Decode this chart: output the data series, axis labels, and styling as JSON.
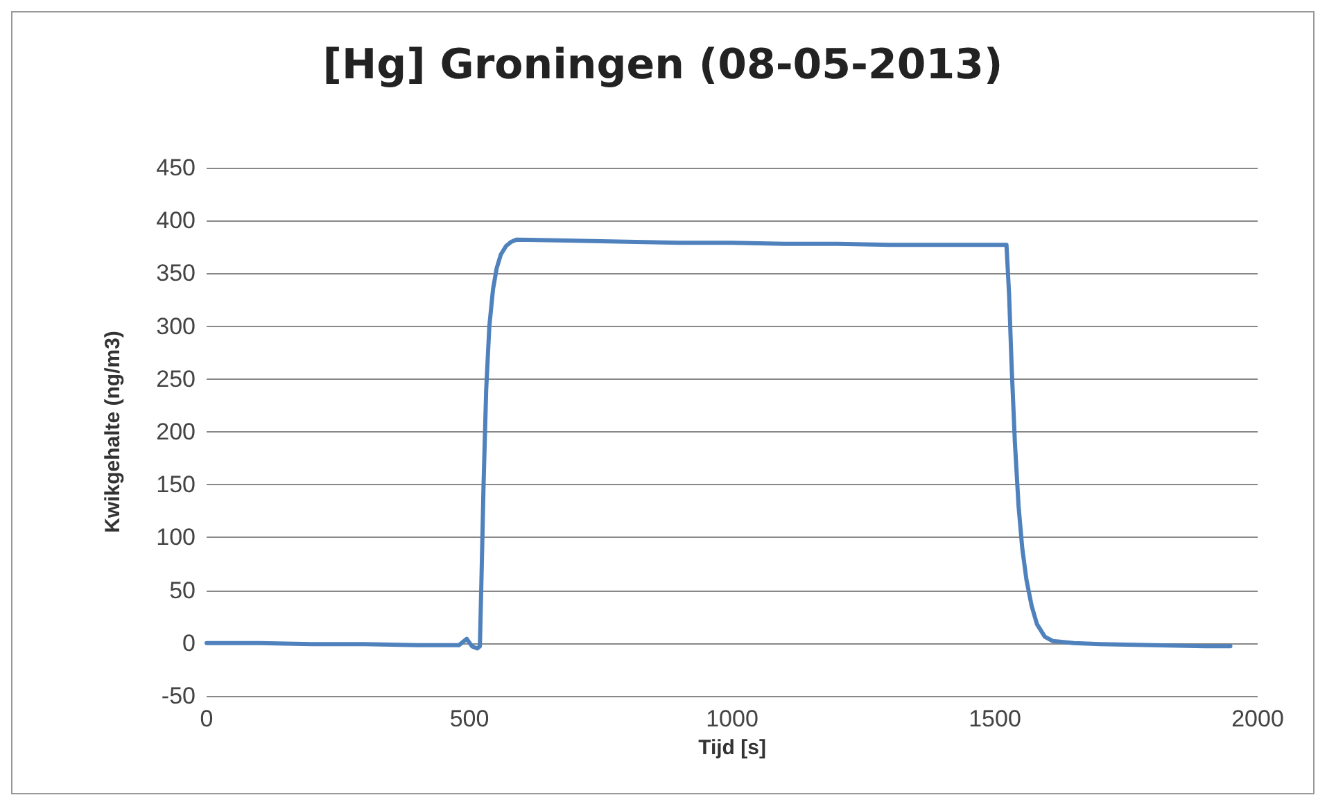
{
  "chart_data": {
    "type": "line",
    "title": "[Hg] Groningen (08-05-2013)",
    "xlabel": "Tijd [s]",
    "ylabel": "Kwikgehalte (ng/m3)",
    "series": [
      {
        "color": "#4f81bd",
        "x": [
          0,
          100,
          200,
          300,
          400,
          480,
          495,
          505,
          515,
          520,
          523,
          527,
          532,
          538,
          545,
          552,
          560,
          570,
          580,
          590,
          700,
          800,
          900,
          1000,
          1100,
          1200,
          1300,
          1400,
          1500,
          1522,
          1527,
          1532,
          1538,
          1545,
          1552,
          1560,
          1570,
          1580,
          1595,
          1610,
          1650,
          1700,
          1800,
          1900,
          1948
        ],
        "values": [
          0,
          0,
          -1,
          -1,
          -2,
          -2,
          4,
          -3,
          -5,
          -3,
          60,
          150,
          240,
          300,
          335,
          355,
          368,
          376,
          380,
          382,
          381,
          380,
          379,
          379,
          378,
          378,
          377,
          377,
          377,
          377,
          330,
          260,
          190,
          130,
          90,
          60,
          35,
          18,
          6,
          2,
          0,
          -1,
          -2,
          -3,
          -3
        ]
      }
    ],
    "xlim": [
      0,
      2000
    ],
    "xticks": [
      0,
      500,
      1000,
      1500,
      2000
    ],
    "ylim": [
      -50,
      450
    ],
    "yticks": [
      -50,
      0,
      50,
      100,
      150,
      200,
      250,
      300,
      350,
      400,
      450
    ],
    "grid": "y",
    "marker": "none",
    "line_style": "solid"
  }
}
